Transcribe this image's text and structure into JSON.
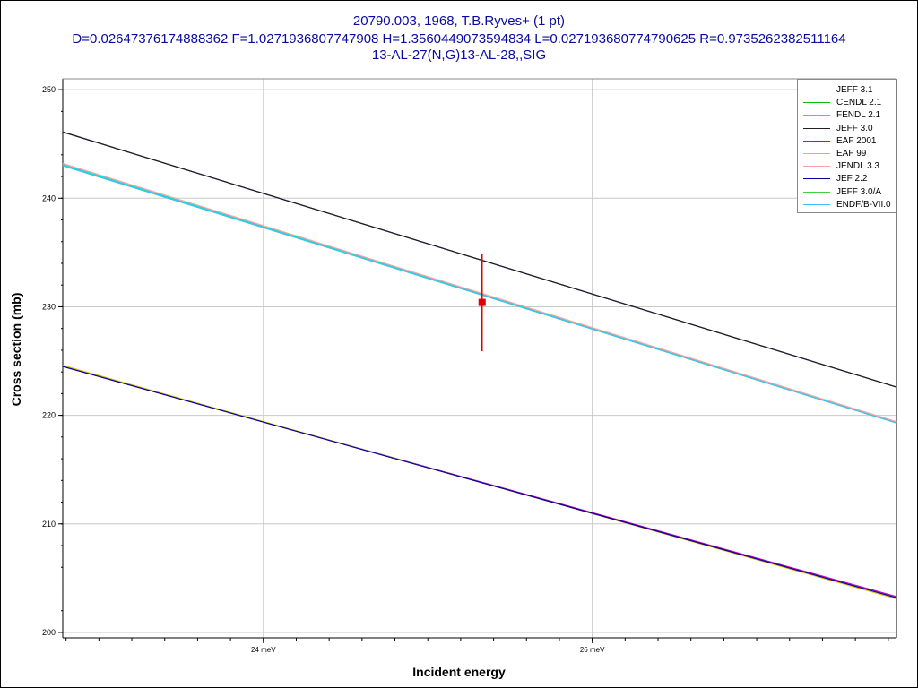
{
  "header": {
    "line1": "20790.003, 1968, T.B.Ryves+ (1 pt)",
    "line2": "D=0.02647376174888362 F=1.0271936807747908 H=1.3560449073594834 L=0.027193680774790625 R=0.9735262382511164",
    "line3": "13-AL-27(N,G)13-AL-28,,SIG"
  },
  "chart_data": {
    "type": "line",
    "title": "20790.003, 1968, T.B.Ryves+ (1 pt)",
    "xlabel": "Incident energy",
    "ylabel": "Cross section (mb)",
    "x_unit": "meV",
    "xlim": [
      22.78,
      27.85
    ],
    "ylim": [
      199.5,
      251.0
    ],
    "x_ticks": [
      {
        "value": 24,
        "label": "24 meV"
      },
      {
        "value": 26,
        "label": "26 meV"
      }
    ],
    "y_ticks": [
      {
        "value": 200,
        "label": "200"
      },
      {
        "value": 210,
        "label": "210"
      },
      {
        "value": 220,
        "label": "220"
      },
      {
        "value": 230,
        "label": "230"
      },
      {
        "value": 240,
        "label": "240"
      },
      {
        "value": 250,
        "label": "250"
      }
    ],
    "grid": true,
    "legend_position": "top-right",
    "series": [
      {
        "name": "JEFF 3.1",
        "color": "#000080",
        "x": [
          22.78,
          27.85
        ],
        "y": [
          246.1,
          222.6
        ]
      },
      {
        "name": "CENDL 2.1",
        "color": "#00c000",
        "x": [
          22.78,
          27.85
        ],
        "y": [
          243.0,
          219.3
        ]
      },
      {
        "name": "FENDL 2.1",
        "color": "#00e0e0",
        "x": [
          22.78,
          27.85
        ],
        "y": [
          243.1,
          219.4
        ]
      },
      {
        "name": "JEFF 3.0",
        "color": "#202020",
        "x": [
          22.78,
          27.85
        ],
        "y": [
          246.1,
          222.6
        ]
      },
      {
        "name": "EAF 2001",
        "color": "#c000c0",
        "x": [
          22.78,
          27.85
        ],
        "y": [
          224.5,
          203.3
        ]
      },
      {
        "name": "EAF 99",
        "color": "#e0c000",
        "x": [
          22.78,
          27.85
        ],
        "y": [
          224.6,
          203.1
        ]
      },
      {
        "name": "JENDL 3.3",
        "color": "#ffa0a0",
        "x": [
          22.78,
          27.85
        ],
        "y": [
          243.2,
          219.4
        ]
      },
      {
        "name": "JEF 2.2",
        "color": "#0000a0",
        "x": [
          22.78,
          27.85
        ],
        "y": [
          224.5,
          203.2
        ]
      },
      {
        "name": "JEFF 3.0/A",
        "color": "#40d040",
        "x": [
          22.78,
          27.85
        ],
        "y": [
          243.0,
          219.3
        ]
      },
      {
        "name": "ENDF/B-VII.0",
        "color": "#40c0ff",
        "x": [
          22.78,
          27.85
        ],
        "y": [
          243.0,
          219.3
        ]
      }
    ],
    "experimental_points": [
      {
        "x": 25.33,
        "y": 230.4,
        "y_err": 4.5,
        "color": "#e00000"
      }
    ]
  }
}
